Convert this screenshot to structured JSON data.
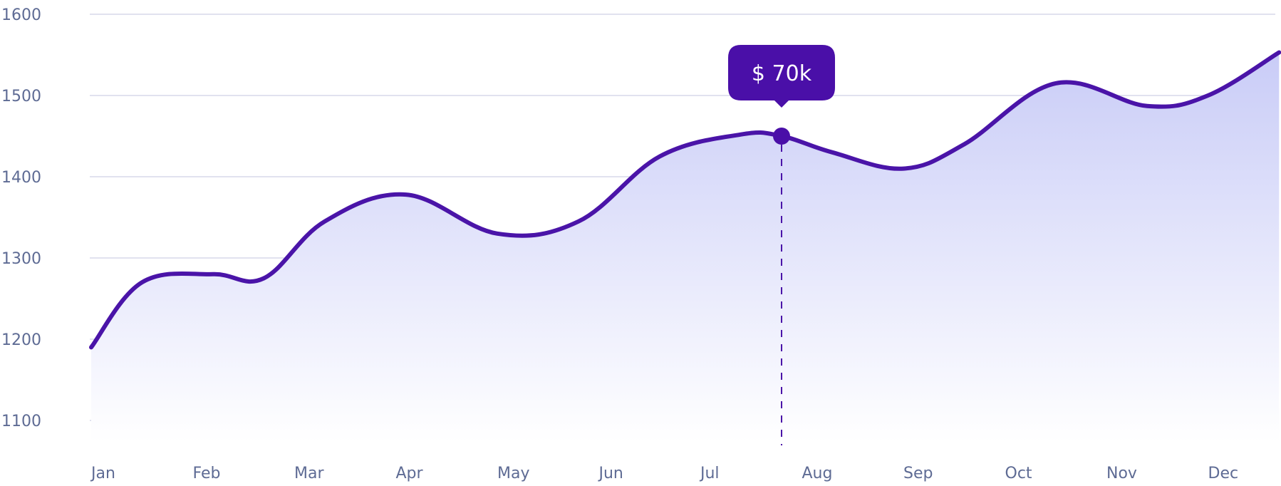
{
  "chart_data": {
    "type": "area",
    "title": "",
    "xlabel": "",
    "ylabel": "",
    "categories": [
      "Jan",
      "Feb",
      "Mar",
      "Apr",
      "May",
      "Jun",
      "Jul",
      "Aug",
      "Sep",
      "Oct",
      "Nov",
      "Dec"
    ],
    "y_ticks": [
      "1600",
      "1500",
      "1400",
      "1300",
      "1200",
      "1100"
    ],
    "ylim": [
      1100,
      1600
    ],
    "grid": true,
    "legend": "none",
    "series": [
      {
        "x": [
          0,
          0.5,
          1.2,
          1.7,
          2.3,
          3.1,
          4.0,
          4.8,
          5.6,
          6.4,
          6.8,
          7.3,
          8.0,
          8.6,
          9.5,
          10.4,
          11.0,
          11.7
        ],
        "values": [
          1190,
          1270,
          1280,
          1275,
          1345,
          1378,
          1330,
          1345,
          1425,
          1452,
          1450,
          1430,
          1410,
          1440,
          1515,
          1487,
          1500,
          1553
        ]
      }
    ],
    "highlight": {
      "x": 6.8,
      "value": 1450,
      "label": "$ 70k"
    },
    "colors": {
      "line": "#4a14a8",
      "fill_top": "#c9ccf7",
      "fill_bottom": "#ffffff",
      "tooltip": "#4a0fa8",
      "axis_text": "#5e6b94",
      "grid": "#d7d9ea"
    }
  }
}
